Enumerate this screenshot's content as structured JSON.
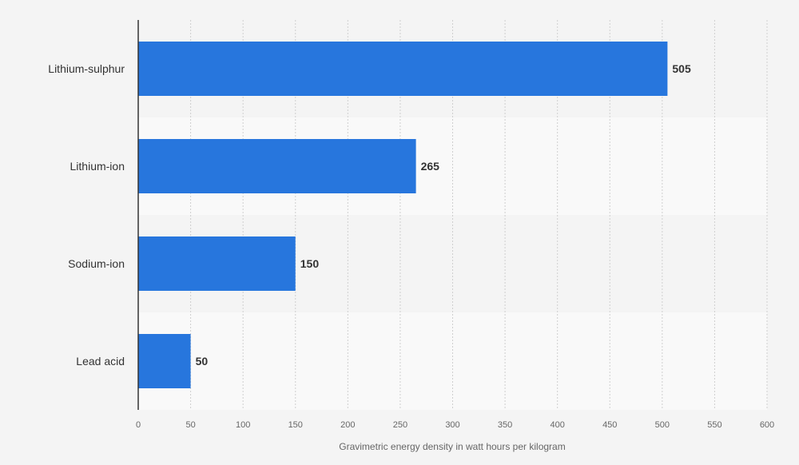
{
  "chart_data": {
    "type": "bar",
    "orientation": "horizontal",
    "title": "",
    "categories": [
      "Lithium-sulphur",
      "Lithium-ion",
      "Sodium-ion",
      "Lead acid"
    ],
    "values": [
      505,
      265,
      150,
      50
    ],
    "value_labels": [
      "505",
      "265",
      "150",
      "50"
    ],
    "xlabel": "Gravimetric energy density in watt hours per kilogram",
    "ylabel": "",
    "xlim": [
      0,
      600
    ],
    "xticks": [
      0,
      50,
      100,
      150,
      200,
      250,
      300,
      350,
      400,
      450,
      500,
      550,
      600
    ],
    "grid": true,
    "legend": "none"
  },
  "colors": {
    "bar": "#2776dd",
    "background": "#f4f4f4",
    "band_alt": "#f9f9f9",
    "grid": "#cfcfcf",
    "axis": "#333333"
  }
}
